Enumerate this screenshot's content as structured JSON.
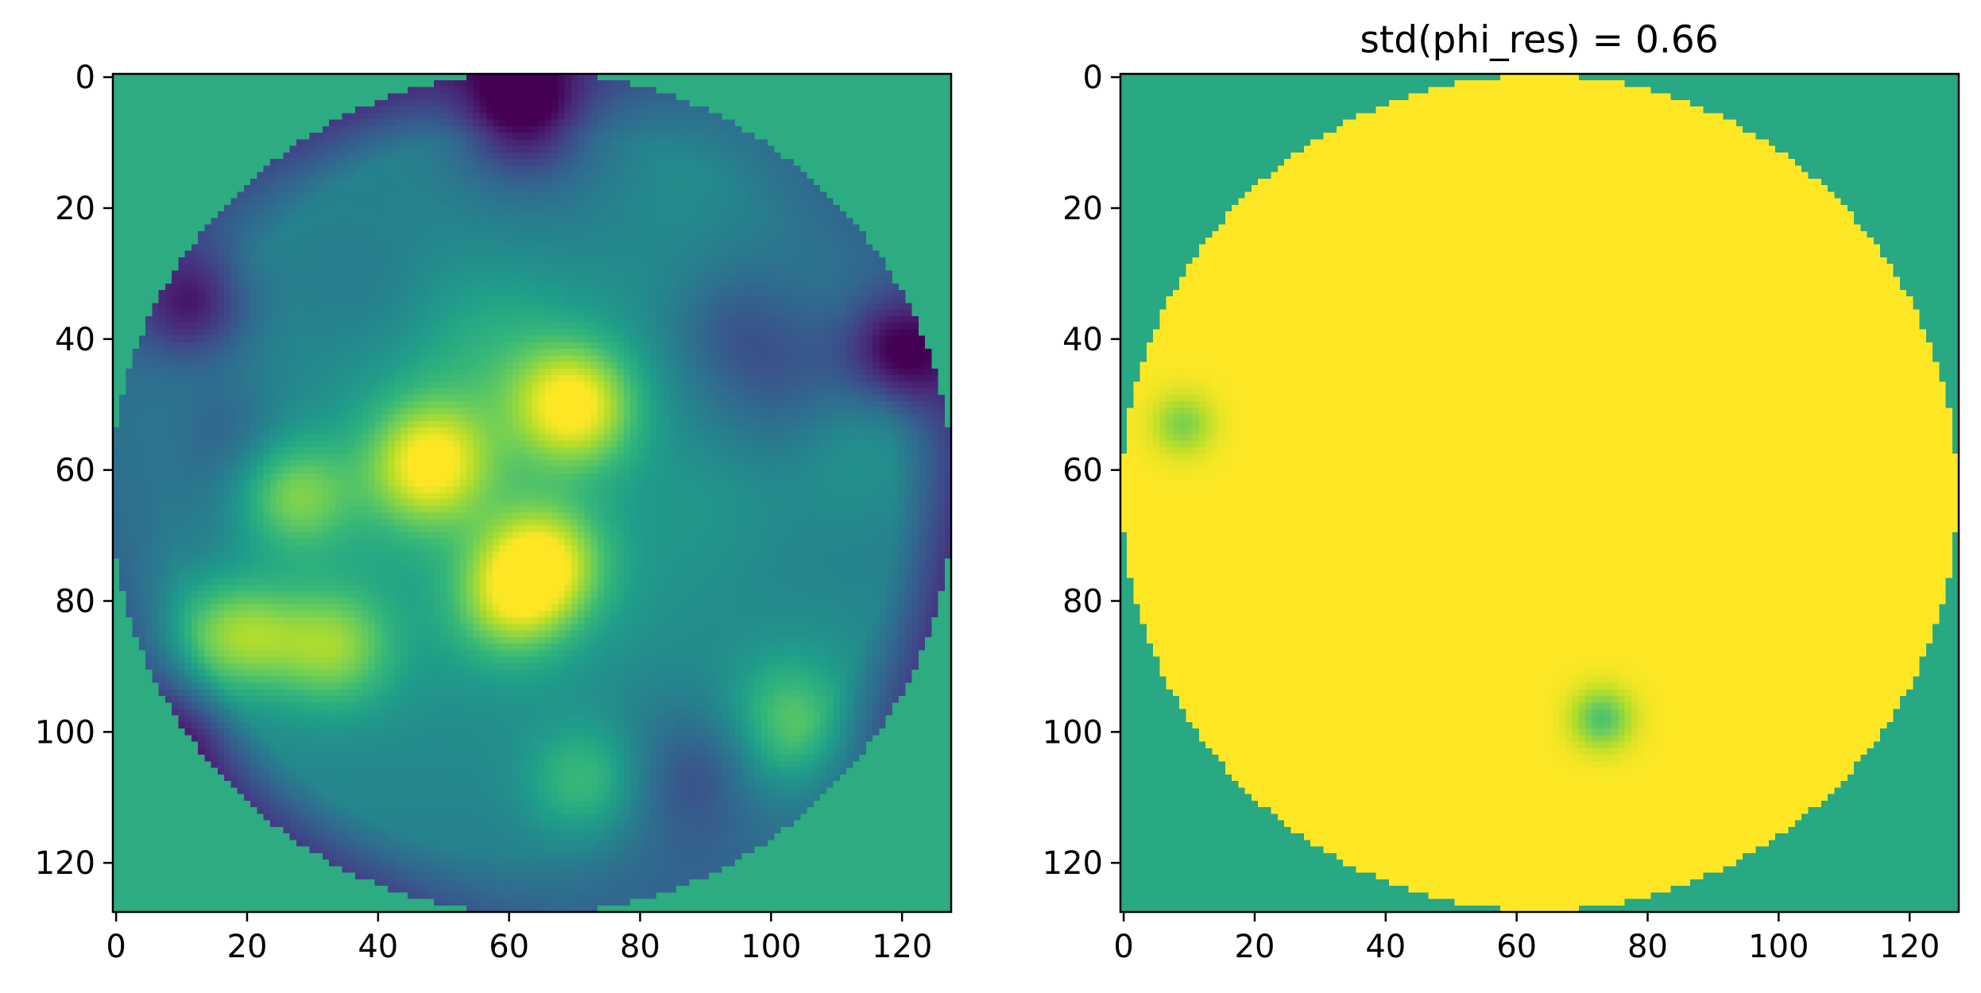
{
  "colors": {
    "viridis": [
      "#440154",
      "#482878",
      "#3e4989",
      "#31688e",
      "#26828e",
      "#1f9e89",
      "#35b779",
      "#6ece58",
      "#b5de2b",
      "#fde725"
    ],
    "background_value_color": "#2aaa80",
    "axes": "#000000"
  },
  "chart_data": [
    {
      "type": "heatmap",
      "title": "",
      "xlabel": "",
      "ylabel": "",
      "xlim": [
        -0.5,
        127.5
      ],
      "ylim": [
        127.5,
        -0.5
      ],
      "xticks": [
        0,
        20,
        40,
        60,
        80,
        100,
        120
      ],
      "yticks": [
        0,
        20,
        40,
        60,
        80,
        100,
        120
      ],
      "grid": false,
      "colormap": "viridis",
      "shape": [
        128,
        128
      ],
      "content": "circular pupil phase map, radius ~64 px centred at (63.5, 63.5); outside value mid-green; interior smooth speckle with bright patches and dark purple rim",
      "bright_spots": [
        {
          "x": 70,
          "y": 50,
          "value": 1.0
        },
        {
          "x": 48,
          "y": 59,
          "value": 0.95
        },
        {
          "x": 65,
          "y": 74,
          "value": 0.95
        },
        {
          "x": 27,
          "y": 64,
          "value": 0.85
        },
        {
          "x": 33,
          "y": 87,
          "value": 0.8
        },
        {
          "x": 17,
          "y": 85,
          "value": 0.75
        },
        {
          "x": 60,
          "y": 80,
          "value": 0.8
        },
        {
          "x": 72,
          "y": 108,
          "value": 0.75
        },
        {
          "x": 103,
          "y": 98,
          "value": 0.7
        }
      ],
      "dark_spots": [
        {
          "x": 62,
          "y": 5,
          "value": 0.0
        },
        {
          "x": 12,
          "y": 35,
          "value": 0.05
        },
        {
          "x": 119,
          "y": 42,
          "value": 0.0
        },
        {
          "x": 10,
          "y": 100,
          "value": 0.25
        }
      ]
    },
    {
      "type": "heatmap",
      "title": "std(phi_res) = 0.66",
      "xlabel": "",
      "ylabel": "",
      "xlim": [
        -0.5,
        127.5
      ],
      "ylim": [
        127.5,
        -0.5
      ],
      "xticks": [
        0,
        20,
        40,
        60,
        80,
        100,
        120
      ],
      "yticks": [
        0,
        20,
        40,
        60,
        80,
        100,
        120
      ],
      "grid": false,
      "colormap": "viridis",
      "shape": [
        128,
        128
      ],
      "content": "circular pupil almost uniformly at maximum (yellow); outside mid-green",
      "interior_value": 1.0,
      "outside_value": 0.6,
      "anomalies": [
        {
          "x": 9,
          "y": 53,
          "value": 0.8
        },
        {
          "x": 73,
          "y": 98,
          "value": 0.72
        }
      ]
    }
  ]
}
